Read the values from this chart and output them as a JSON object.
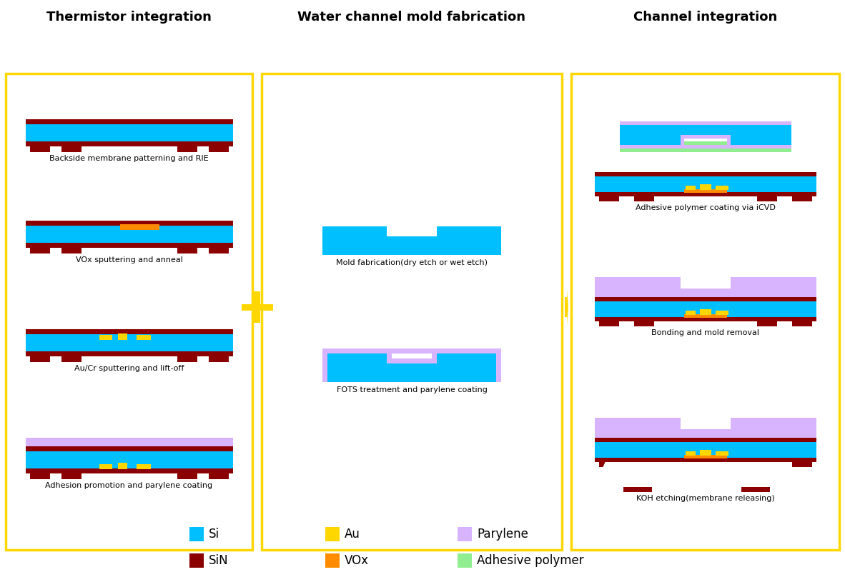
{
  "colors": {
    "si": "#00BFFF",
    "sin": "#8B0000",
    "vox": "#FF8C00",
    "au": "#FFD700",
    "parylene": "#D8B4FE",
    "adhesive": "#90EE90",
    "border": "#FFD700",
    "background": "#FFFFFF",
    "text": "#000000",
    "arrow": "#FFD700"
  },
  "section_titles": [
    "Thermistor integration",
    "Water channel mold fabrication",
    "Channel integration"
  ],
  "step_labels": {
    "left": [
      "Backside membrane patterning and RIE",
      "VOx sputtering and anneal",
      "Au/Cr sputtering and lift-off",
      "Adhesion promotion and parylene coating"
    ],
    "middle": [
      "Mold fabrication(dry etch or wet etch)",
      "FOTS treatment and parylene coating"
    ],
    "right": [
      "Adhesive polymer coating via iCVD",
      "Bonding and mold removal",
      "KOH etching(membrane releasing)"
    ]
  },
  "legend_row1": [
    {
      "color": "#00BFFF",
      "label": "Si"
    },
    {
      "color": "#FFD700",
      "label": "Au"
    },
    {
      "color": "#D8B4FE",
      "label": "Parylene"
    }
  ],
  "legend_row2": [
    {
      "color": "#8B0000",
      "label": "SiN"
    },
    {
      "color": "#FF8C00",
      "label": "VOx"
    },
    {
      "color": "#90EE90",
      "label": "Adhesive polymer"
    }
  ]
}
